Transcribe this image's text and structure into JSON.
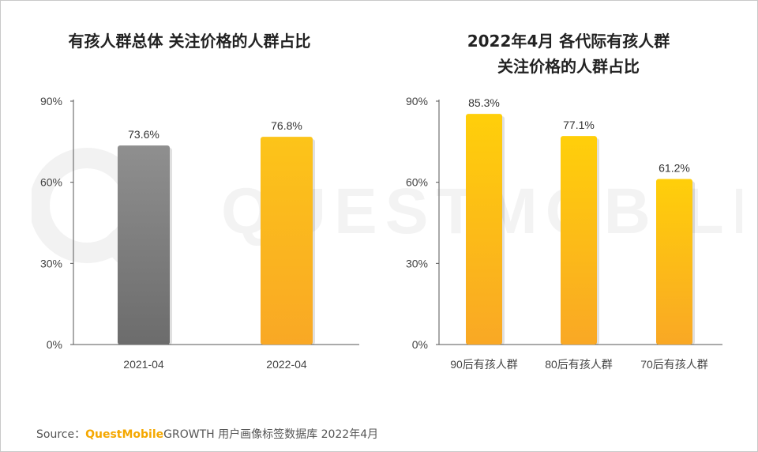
{
  "chart_data": [
    {
      "type": "bar",
      "title": "有孩人群总体 关注价格的人群占比",
      "categories": [
        "2021-04",
        "2022-04"
      ],
      "values": [
        73.6,
        76.8
      ],
      "value_labels": [
        "73.6%",
        "76.8%"
      ],
      "bar_colors": [
        "#8a8a8a",
        "#fbb616"
      ],
      "ylim": [
        0,
        90
      ],
      "yticks": [
        "0%",
        "30%",
        "60%",
        "90%"
      ],
      "xlabel": "",
      "ylabel": "",
      "grid": false
    },
    {
      "type": "bar",
      "title_lines": [
        "2022年4月 各代际有孩人群",
        "关注价格的人群占比"
      ],
      "categories": [
        "90后有孩人群",
        "80后有孩人群",
        "70后有孩人群"
      ],
      "values": [
        85.3,
        77.1,
        61.2
      ],
      "value_labels": [
        "85.3%",
        "77.1%",
        "61.2%"
      ],
      "bar_colors": [
        "#fbb616",
        "#fbb616",
        "#fbb616"
      ],
      "ylim": [
        0,
        90
      ],
      "yticks": [
        "0%",
        "30%",
        "60%",
        "90%"
      ],
      "xlabel": "",
      "ylabel": "",
      "grid": false
    }
  ],
  "watermark": "QUESTMOBILE",
  "footer": {
    "source_label": "Source：",
    "brand": "QuestMobile",
    "text": "GROWTH 用户画像标签数据库 2022年4月"
  }
}
